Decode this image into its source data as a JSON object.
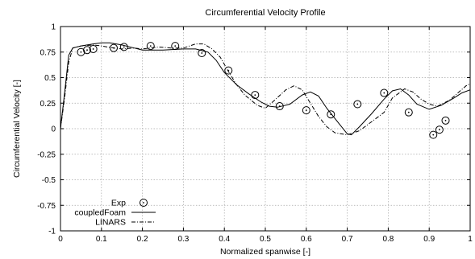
{
  "chart_data": {
    "type": "line",
    "title": "Circumferential Velocity Profile",
    "xlabel": "Normalized spanwise [-]",
    "ylabel": "Circumferential Velocity [-]",
    "xlim": [
      0,
      1
    ],
    "ylim": [
      -1,
      1
    ],
    "x_ticks": [
      "0",
      "0.1",
      "0.2",
      "0.3",
      "0.4",
      "0.5",
      "0.6",
      "0.7",
      "0.8",
      "0.9",
      "1"
    ],
    "y_ticks": [
      "1",
      "0.75",
      "0.5",
      "0.25",
      "0",
      "-0.25",
      "-0.5",
      "-0.75",
      "-1"
    ],
    "grid": true,
    "legend_position": "bottom-left",
    "series": [
      {
        "name": "Exp",
        "style": "circle-dot markers",
        "points": [
          [
            0.05,
            0.75
          ],
          [
            0.065,
            0.77
          ],
          [
            0.08,
            0.78
          ],
          [
            0.13,
            0.79
          ],
          [
            0.155,
            0.8
          ],
          [
            0.22,
            0.81
          ],
          [
            0.28,
            0.81
          ],
          [
            0.345,
            0.74
          ],
          [
            0.41,
            0.57
          ],
          [
            0.475,
            0.33
          ],
          [
            0.535,
            0.22
          ],
          [
            0.6,
            0.18
          ],
          [
            0.66,
            0.14
          ],
          [
            0.725,
            0.24
          ],
          [
            0.79,
            0.35
          ],
          [
            0.85,
            0.16
          ],
          [
            0.91,
            -0.06
          ],
          [
            0.925,
            -0.01
          ],
          [
            0.94,
            0.08
          ]
        ]
      },
      {
        "name": "coupledFoam",
        "style": "solid",
        "points": [
          [
            0.0,
            0.0
          ],
          [
            0.01,
            0.35
          ],
          [
            0.02,
            0.72
          ],
          [
            0.03,
            0.79
          ],
          [
            0.05,
            0.81
          ],
          [
            0.08,
            0.83
          ],
          [
            0.1,
            0.84
          ],
          [
            0.12,
            0.84
          ],
          [
            0.15,
            0.82
          ],
          [
            0.18,
            0.79
          ],
          [
            0.2,
            0.77
          ],
          [
            0.25,
            0.77
          ],
          [
            0.3,
            0.78
          ],
          [
            0.33,
            0.78
          ],
          [
            0.36,
            0.75
          ],
          [
            0.38,
            0.67
          ],
          [
            0.4,
            0.55
          ],
          [
            0.43,
            0.43
          ],
          [
            0.46,
            0.34
          ],
          [
            0.49,
            0.26
          ],
          [
            0.51,
            0.22
          ],
          [
            0.53,
            0.21
          ],
          [
            0.56,
            0.24
          ],
          [
            0.59,
            0.33
          ],
          [
            0.61,
            0.36
          ],
          [
            0.63,
            0.32
          ],
          [
            0.65,
            0.2
          ],
          [
            0.68,
            0.05
          ],
          [
            0.7,
            -0.05
          ],
          [
            0.71,
            -0.06
          ],
          [
            0.73,
            0.02
          ],
          [
            0.76,
            0.15
          ],
          [
            0.79,
            0.29
          ],
          [
            0.81,
            0.37
          ],
          [
            0.83,
            0.39
          ],
          [
            0.85,
            0.33
          ],
          [
            0.87,
            0.24
          ],
          [
            0.9,
            0.19
          ],
          [
            0.93,
            0.23
          ],
          [
            0.96,
            0.3
          ],
          [
            0.98,
            0.35
          ],
          [
            1.0,
            0.38
          ]
        ]
      },
      {
        "name": "LINARS",
        "style": "dash-dot",
        "points": [
          [
            0.0,
            0.0
          ],
          [
            0.01,
            0.3
          ],
          [
            0.02,
            0.65
          ],
          [
            0.03,
            0.79
          ],
          [
            0.05,
            0.81
          ],
          [
            0.08,
            0.82
          ],
          [
            0.1,
            0.81
          ],
          [
            0.13,
            0.79
          ],
          [
            0.15,
            0.78
          ],
          [
            0.18,
            0.79
          ],
          [
            0.2,
            0.78
          ],
          [
            0.24,
            0.8
          ],
          [
            0.27,
            0.79
          ],
          [
            0.3,
            0.79
          ],
          [
            0.33,
            0.83
          ],
          [
            0.35,
            0.83
          ],
          [
            0.37,
            0.78
          ],
          [
            0.39,
            0.7
          ],
          [
            0.41,
            0.56
          ],
          [
            0.43,
            0.43
          ],
          [
            0.45,
            0.33
          ],
          [
            0.48,
            0.23
          ],
          [
            0.5,
            0.2
          ],
          [
            0.52,
            0.27
          ],
          [
            0.55,
            0.38
          ],
          [
            0.57,
            0.42
          ],
          [
            0.59,
            0.38
          ],
          [
            0.61,
            0.25
          ],
          [
            0.63,
            0.12
          ],
          [
            0.65,
            0.02
          ],
          [
            0.67,
            -0.04
          ],
          [
            0.7,
            -0.06
          ],
          [
            0.73,
            -0.02
          ],
          [
            0.76,
            0.07
          ],
          [
            0.79,
            0.16
          ],
          [
            0.81,
            0.3
          ],
          [
            0.84,
            0.39
          ],
          [
            0.86,
            0.36
          ],
          [
            0.88,
            0.29
          ],
          [
            0.9,
            0.24
          ],
          [
            0.92,
            0.22
          ],
          [
            0.95,
            0.28
          ],
          [
            0.97,
            0.35
          ],
          [
            0.99,
            0.42
          ],
          [
            1.0,
            0.44
          ]
        ]
      }
    ]
  }
}
